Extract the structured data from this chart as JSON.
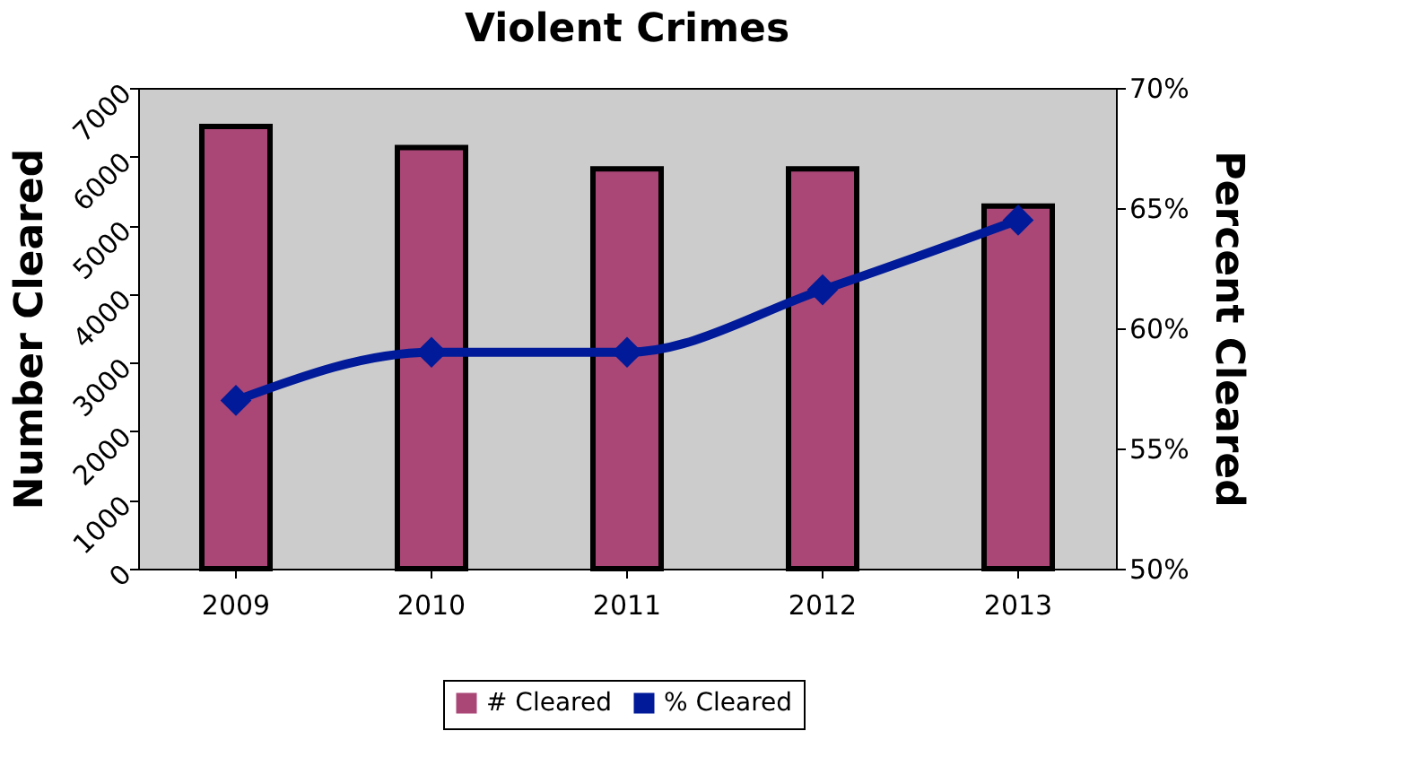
{
  "chart_data": {
    "type": "bar",
    "title": "Violent Crimes",
    "ylabel": "Number Cleared",
    "y2label": "Percent Cleared",
    "categories": [
      "2009",
      "2010",
      "2011",
      "2012",
      "2013"
    ],
    "series": [
      {
        "name": "# Cleared",
        "color": "#aa4777",
        "values": [
          6440,
          6130,
          5820,
          5820,
          5280
        ]
      },
      {
        "name": "% Cleared",
        "type": "line",
        "axis": "y2",
        "color": "#001a99",
        "marker": "diamond",
        "line_style": "solid",
        "values": [
          57.0,
          59.0,
          59.0,
          61.6,
          64.5
        ]
      }
    ],
    "ylim": [
      0,
      7000
    ],
    "yticks": [
      0,
      1000,
      2000,
      3000,
      4000,
      5000,
      6000,
      7000
    ],
    "y2lim": [
      50,
      70
    ],
    "y2ticks": [
      {
        "value": 50,
        "label": "50%"
      },
      {
        "value": 55,
        "label": "55%"
      },
      {
        "value": 60,
        "label": "60%"
      },
      {
        "value": 65,
        "label": "65%"
      },
      {
        "value": 70,
        "label": "70%"
      }
    ],
    "grid": false,
    "legend": "bottom"
  }
}
